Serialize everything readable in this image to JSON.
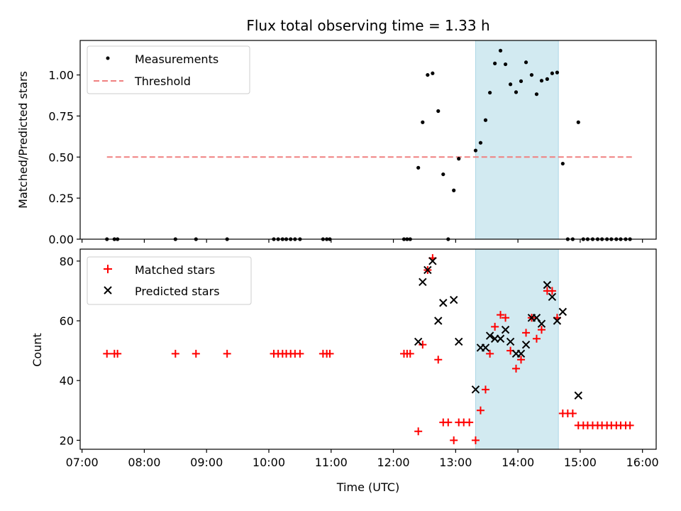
{
  "chart_data": [
    {
      "type": "scatter",
      "title": "Flux total observing time = 1.33 h",
      "xlabel": "",
      "ylabel": "Matched/Predicted stars",
      "xlim_hours": [
        6.97,
        16.22
      ],
      "ylim": [
        0.0,
        1.21
      ],
      "yticks": [
        0.0,
        0.25,
        0.5,
        0.75,
        1.0
      ],
      "ytick_labels": [
        "0.00",
        "0.25",
        "0.50",
        "0.75",
        "1.00"
      ],
      "shaded_interval_hours": [
        13.32,
        14.65
      ],
      "shaded_color": "#add8e6",
      "legend_location": "upper-left",
      "threshold": {
        "name": "Threshold",
        "y": 0.5,
        "x_range": [
          7.4,
          15.83
        ],
        "color": "#f08080"
      },
      "series": [
        {
          "name": "Measurements",
          "color": "#000000",
          "marker": "dot",
          "x": [
            7.4,
            7.52,
            7.57,
            8.5,
            8.83,
            9.33,
            10.08,
            10.15,
            10.22,
            10.28,
            10.35,
            10.42,
            10.5,
            10.87,
            10.93,
            10.98,
            12.17,
            12.22,
            12.27,
            12.4,
            12.47,
            12.55,
            12.63,
            12.72,
            12.8,
            12.88,
            12.97,
            13.05,
            13.32,
            13.4,
            13.48,
            13.55,
            13.63,
            13.72,
            13.8,
            13.88,
            13.97,
            14.05,
            14.13,
            14.22,
            14.3,
            14.38,
            14.47,
            14.55,
            14.63,
            14.72,
            14.8,
            14.88,
            14.97,
            15.05,
            15.12,
            15.2,
            15.28,
            15.35,
            15.43,
            15.5,
            15.58,
            15.65,
            15.73,
            15.8
          ],
          "y": [
            0,
            0,
            0,
            0,
            0,
            0,
            0,
            0,
            0,
            0,
            0,
            0,
            0,
            0,
            0,
            0,
            0,
            0,
            0,
            0.435,
            0.712,
            1.0,
            1.01,
            0.78,
            0.395,
            0,
            0.297,
            0.49,
            0.54,
            0.587,
            0.725,
            0.892,
            1.07,
            1.148,
            1.065,
            0.943,
            0.895,
            0.962,
            1.077,
            1.0,
            0.883,
            0.965,
            0.975,
            1.01,
            1.015,
            0.46,
            0,
            0,
            0.712,
            0,
            0,
            0,
            0,
            0,
            0,
            0,
            0,
            0,
            0,
            0
          ]
        }
      ]
    },
    {
      "type": "scatter",
      "title": "",
      "xlabel": "Time (UTC)",
      "ylabel": "Count",
      "xlim_hours": [
        6.97,
        16.22
      ],
      "ylim": [
        17,
        84
      ],
      "yticks": [
        20,
        40,
        60,
        80
      ],
      "ytick_labels": [
        "20",
        "40",
        "60",
        "80"
      ],
      "xticks_hours": [
        7,
        8,
        9,
        10,
        11,
        12,
        13,
        14,
        15,
        16
      ],
      "xtick_labels": [
        "07:00",
        "08:00",
        "09:00",
        "10:00",
        "11:00",
        "12:00",
        "13:00",
        "14:00",
        "15:00",
        "16:00"
      ],
      "shaded_interval_hours": [
        13.32,
        14.65
      ],
      "shaded_color": "#add8e6",
      "legend_location": "upper-left",
      "series": [
        {
          "name": "Matched stars",
          "color": "#ff0000",
          "marker": "plus",
          "x": [
            7.4,
            7.52,
            7.57,
            8.5,
            8.83,
            9.33,
            10.08,
            10.15,
            10.22,
            10.28,
            10.35,
            10.42,
            10.5,
            10.87,
            10.93,
            10.98,
            12.17,
            12.22,
            12.27,
            12.4,
            12.47,
            12.55,
            12.63,
            12.72,
            12.8,
            12.88,
            12.97,
            13.05,
            13.13,
            13.22,
            13.32,
            13.4,
            13.48,
            13.55,
            13.63,
            13.72,
            13.8,
            13.88,
            13.97,
            14.05,
            14.13,
            14.22,
            14.3,
            14.38,
            14.47,
            14.55,
            14.63,
            14.72,
            14.8,
            14.88,
            14.97,
            15.05,
            15.12,
            15.2,
            15.28,
            15.35,
            15.43,
            15.5,
            15.58,
            15.65,
            15.73,
            15.8
          ],
          "y": [
            49,
            49,
            49,
            49,
            49,
            49,
            49,
            49,
            49,
            49,
            49,
            49,
            49,
            49,
            49,
            49,
            49,
            49,
            49,
            23,
            52,
            77,
            81,
            47,
            26,
            26,
            20,
            26,
            26,
            26,
            20,
            30,
            37,
            49,
            58,
            62,
            61,
            50,
            44,
            47,
            56,
            61,
            54,
            57,
            70,
            70,
            61,
            29,
            29,
            29,
            25,
            25,
            25,
            25,
            25,
            25,
            25,
            25,
            25,
            25,
            25,
            25
          ]
        },
        {
          "name": "Predicted stars",
          "color": "#000000",
          "marker": "x",
          "x": [
            12.4,
            12.47,
            12.55,
            12.63,
            12.72,
            12.8,
            12.97,
            13.05,
            13.32,
            13.4,
            13.48,
            13.55,
            13.63,
            13.72,
            13.8,
            13.88,
            13.97,
            14.05,
            14.13,
            14.22,
            14.3,
            14.38,
            14.47,
            14.55,
            14.63,
            14.72,
            14.97
          ],
          "y": [
            53,
            73,
            77,
            80,
            60,
            66,
            67,
            53,
            37,
            51,
            51,
            55,
            54,
            54,
            57,
            53,
            49,
            49,
            52,
            61,
            61,
            59,
            72,
            68,
            60,
            63,
            35
          ]
        }
      ]
    }
  ]
}
